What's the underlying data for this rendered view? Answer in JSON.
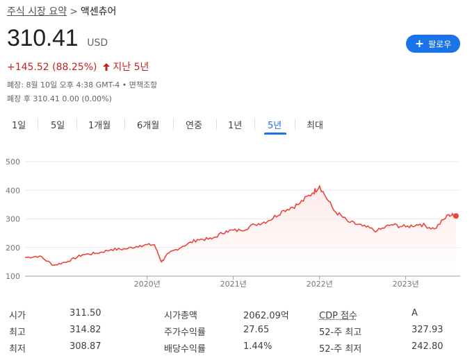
{
  "breadcrumb": {
    "parent": "주식 시장 요약",
    "separator": ">",
    "current": "액센츄어"
  },
  "quote": {
    "price": "310.41",
    "currency": "USD",
    "change": "+145.52 (88.25%)",
    "arrow": "🡑",
    "period_text": "지난 5년"
  },
  "follow_button": {
    "label": "팔로우"
  },
  "meta": {
    "close_line": "폐장: 8월 10일 오후 4:38 GMT-4 • 면책조항",
    "after_hours_line": "폐장 후 310.41 0.00 (0.00%)"
  },
  "tabs": [
    {
      "label": "1일"
    },
    {
      "label": "5일"
    },
    {
      "label": "1개월"
    },
    {
      "label": "6개월"
    },
    {
      "label": "연중"
    },
    {
      "label": "1년"
    },
    {
      "label": "5년",
      "active": true
    },
    {
      "label": "최대"
    }
  ],
  "colors": {
    "accent": "#1a73e8",
    "negative_line": "#e8453c",
    "change_text": "#c5221f"
  },
  "chart_data": {
    "type": "area",
    "y_ticks": [
      "500",
      "400",
      "300",
      "200",
      "100"
    ],
    "ylim": [
      100,
      500
    ],
    "x_labels": [
      "2020년",
      "2021년",
      "2022년",
      "2023년"
    ],
    "x": [
      "2018-08",
      "2018-10",
      "2018-12",
      "2019-02",
      "2019-04",
      "2019-06",
      "2019-08",
      "2019-10",
      "2019-12",
      "2020-02",
      "2020-03",
      "2020-04",
      "2020-06",
      "2020-08",
      "2020-10",
      "2020-12",
      "2021-02",
      "2021-04",
      "2021-06",
      "2021-08",
      "2021-10",
      "2021-12",
      "2022-01",
      "2022-03",
      "2022-05",
      "2022-07",
      "2022-09",
      "2022-11",
      "2023-01",
      "2023-03",
      "2023-05",
      "2023-07",
      "2023-08"
    ],
    "values": [
      165,
      170,
      138,
      152,
      175,
      180,
      193,
      195,
      207,
      210,
      150,
      180,
      205,
      228,
      230,
      258,
      260,
      280,
      295,
      330,
      350,
      390,
      415,
      330,
      290,
      275,
      258,
      280,
      272,
      282,
      265,
      315,
      310
    ],
    "last_value": 310.41
  },
  "stats": [
    {
      "label": "시가",
      "value": "311.50"
    },
    {
      "label": "최고",
      "value": "314.82"
    },
    {
      "label": "최저",
      "value": "308.87"
    },
    {
      "label": "시가총액",
      "value": "2062.09억"
    },
    {
      "label": "주가수익률",
      "value": "27.65"
    },
    {
      "label": "배당수익률",
      "value": "1.44%"
    },
    {
      "label": "CDP 점수",
      "value": "A"
    },
    {
      "label": "52-주 최고",
      "value": "327.93"
    },
    {
      "label": "52-주 최저",
      "value": "242.80"
    }
  ]
}
